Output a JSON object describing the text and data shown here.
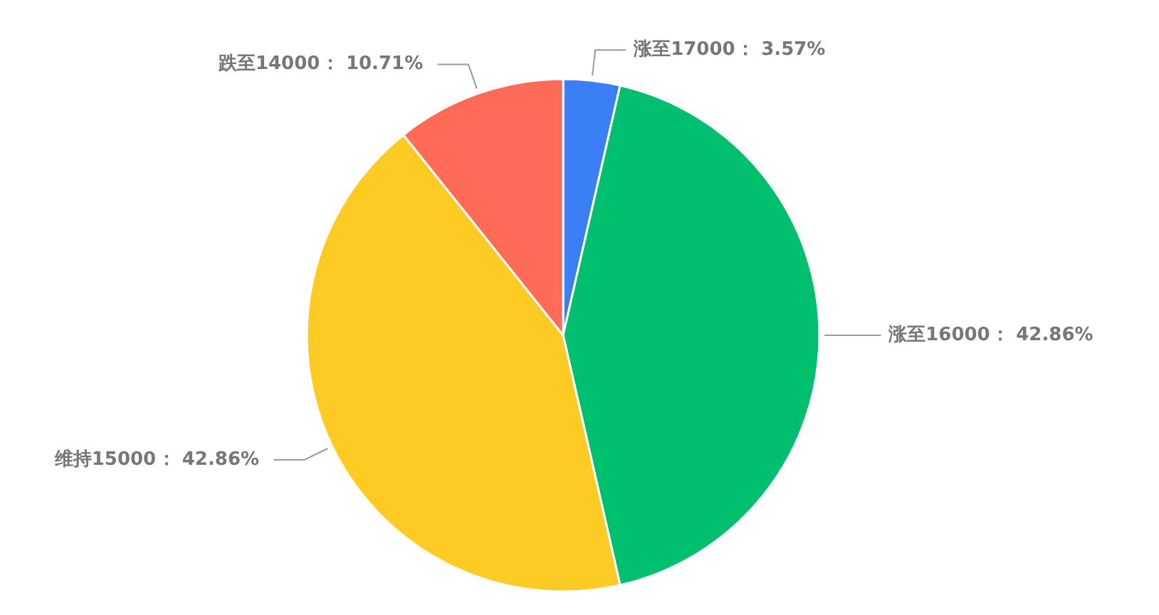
{
  "chart_data": {
    "type": "pie",
    "categories": [
      "涨至17000",
      "涨至16000",
      "维持15000",
      "跌至14000"
    ],
    "values": [
      3.57,
      42.86,
      42.86,
      10.71
    ],
    "colors": [
      "#3a7ff6",
      "#00bf6f",
      "#fecb24",
      "#ff6b57"
    ],
    "value_labels": [
      "： 3.57%",
      "： 42.86%",
      "： 42.86%",
      "： 10.71%"
    ]
  }
}
